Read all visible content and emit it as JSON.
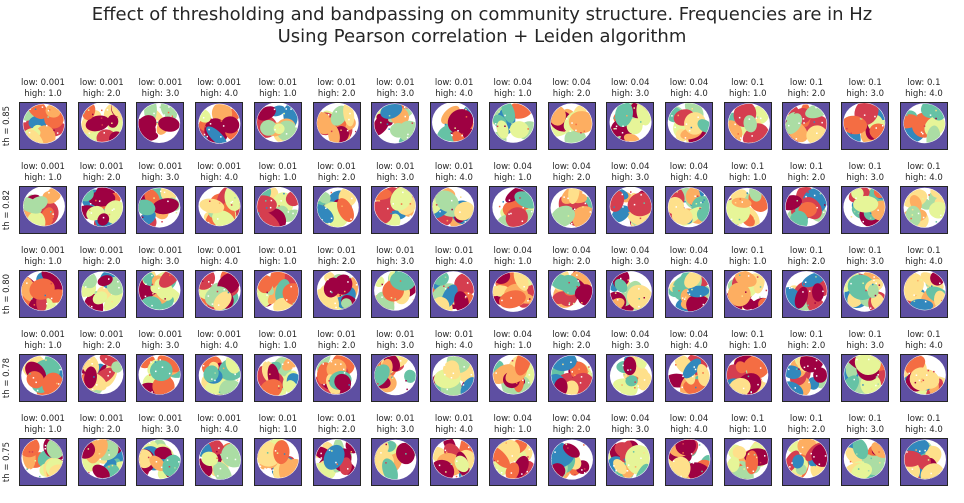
{
  "figure": {
    "title_line1": "Effect of thresholding and bandpassing on community structure.  Frequencies are in Hz",
    "title_line2": "Using Pearson correlation + Leiden algorithm"
  },
  "chart_data": {
    "type": "heatmap",
    "title": "Effect of thresholding and bandpassing on community structure.  Frequencies are in Hz\nUsing Pearson correlation + Leiden algorithm",
    "colormap": "Spectral",
    "background_color": "#5e4fa2",
    "rows": [
      {
        "label": "th = 0.85",
        "threshold": 0.85
      },
      {
        "label": "th = 0.82",
        "threshold": 0.82
      },
      {
        "label": "th = 0.80",
        "threshold": 0.8
      },
      {
        "label": "th = 0.78",
        "threshold": 0.78
      },
      {
        "label": "th = 0.75",
        "threshold": 0.75
      }
    ],
    "columns": [
      {
        "low": "0.001",
        "high": "1.0"
      },
      {
        "low": "0.001",
        "high": "2.0"
      },
      {
        "low": "0.001",
        "high": "3.0"
      },
      {
        "low": "0.001",
        "high": "4.0"
      },
      {
        "low": "0.01",
        "high": "1.0"
      },
      {
        "low": "0.01",
        "high": "2.0"
      },
      {
        "low": "0.01",
        "high": "3.0"
      },
      {
        "low": "0.01",
        "high": "4.0"
      },
      {
        "low": "0.04",
        "high": "1.0"
      },
      {
        "low": "0.04",
        "high": "2.0"
      },
      {
        "low": "0.04",
        "high": "3.0"
      },
      {
        "low": "0.04",
        "high": "4.0"
      },
      {
        "low": "0.1",
        "high": "1.0"
      },
      {
        "low": "0.1",
        "high": "2.0"
      },
      {
        "low": "0.1",
        "high": "3.0"
      },
      {
        "low": "0.1",
        "high": "4.0"
      }
    ],
    "palette": [
      "#9e0142",
      "#d53e4f",
      "#f46d43",
      "#fdae61",
      "#fee08b",
      "#e6f598",
      "#abdda4",
      "#66c2a5",
      "#3288bd"
    ]
  }
}
